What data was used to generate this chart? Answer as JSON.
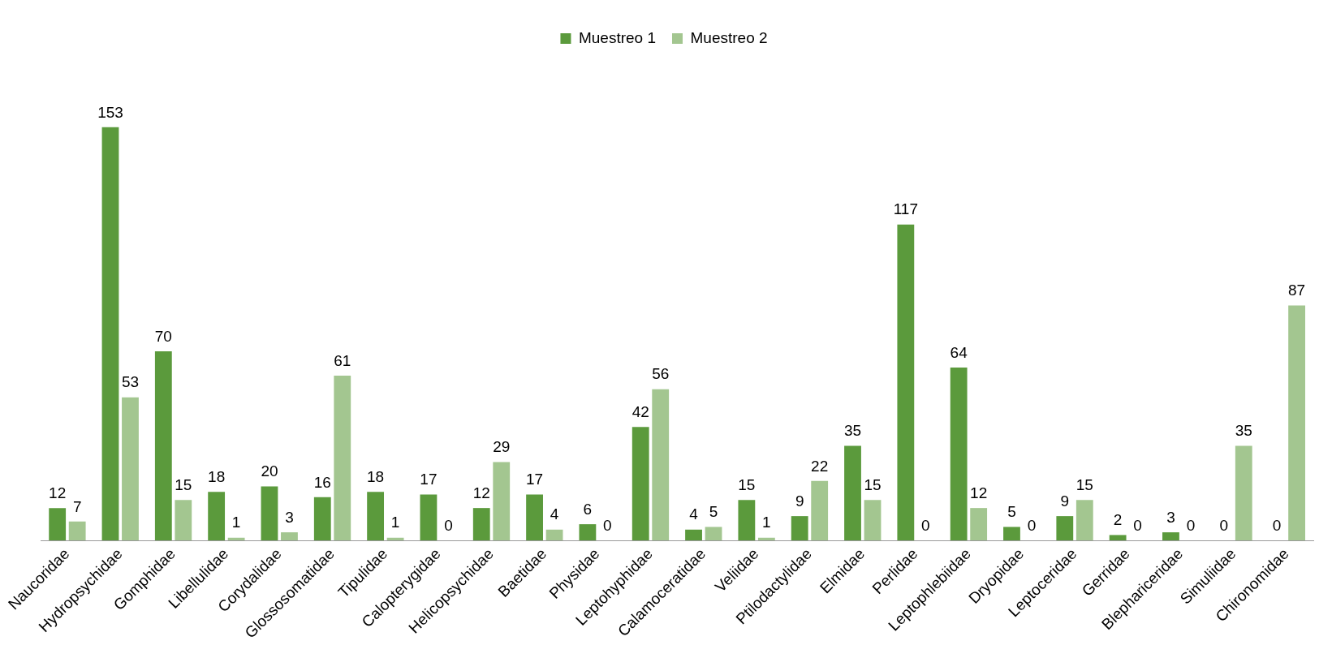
{
  "chart_data": {
    "type": "bar",
    "categories": [
      "Naucoridae",
      "Hydropsychidae",
      "Gomphidae",
      "Libellulidae",
      "Corydalidae",
      "Glossosomatidae",
      "Tipulidae",
      "Calopterygidae",
      "Helicopsychidae",
      "Baetidae",
      "Physidae",
      "Leptohyphidae",
      "Calamoceratidae",
      "Veliidae",
      "Ptilodactylidae",
      "Elmidae",
      "Perlidae",
      "Leptophlebiidae",
      "Dryopidae",
      "Leptoceridae",
      "Gerridae",
      "Blephariceridae",
      "Simuliidae",
      "Chironomidae"
    ],
    "series": [
      {
        "name": "Muestreo 1",
        "color": "#5b9a3c",
        "values": [
          12,
          153,
          70,
          18,
          20,
          16,
          18,
          17,
          12,
          17,
          6,
          42,
          4,
          15,
          9,
          35,
          117,
          64,
          5,
          9,
          2,
          3,
          0,
          0
        ]
      },
      {
        "name": "Muestreo 2",
        "color": "#a3c690",
        "values": [
          7,
          53,
          15,
          1,
          3,
          61,
          1,
          0,
          29,
          4,
          0,
          56,
          5,
          1,
          22,
          15,
          0,
          12,
          0,
          15,
          0,
          0,
          35,
          87
        ]
      }
    ],
    "data_labels": true,
    "legend": "top",
    "grid": false
  }
}
